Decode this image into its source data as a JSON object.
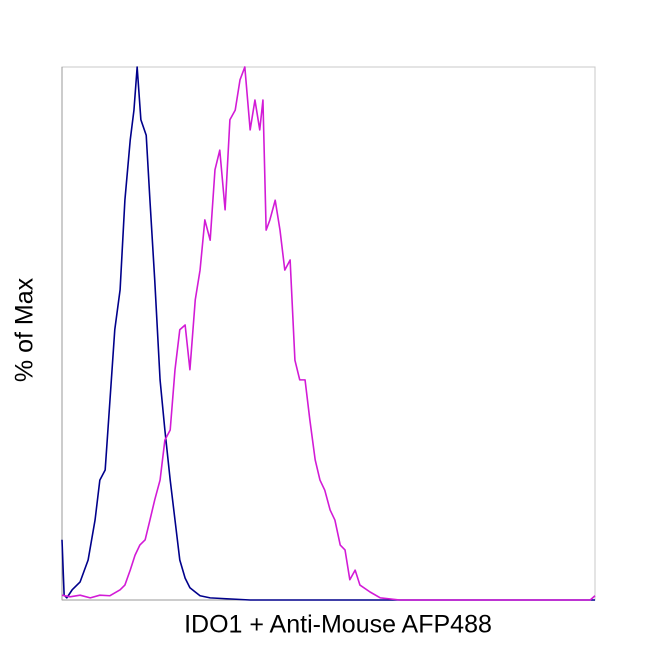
{
  "chart_data": {
    "type": "line",
    "x_label": "IDO1 + Anti-Mouse AFP488",
    "y_label": "% of Max",
    "xlim": [
      0,
      100
    ],
    "ylim": [
      0,
      100
    ],
    "series": [
      {
        "color": "#00008b",
        "x": [
          0,
          0.4,
          0.9,
          1.9,
          3.4,
          4.9,
          6.2,
          7.1,
          8.1,
          9.0,
          9.9,
          10.9,
          11.8,
          12.8,
          13.5,
          14.1,
          14.8,
          15.8,
          16.5,
          17.4,
          18.4,
          19.3,
          20.3,
          21.2,
          22.1,
          23.1,
          24.0,
          25.0,
          25.9,
          27.8,
          35.3,
          63.4,
          100
        ],
        "values": [
          11.3,
          0.9,
          0.4,
          1.9,
          3.4,
          7.5,
          15.0,
          22.5,
          24.4,
          37.5,
          50.7,
          58.2,
          75.0,
          86.3,
          91.9,
          100,
          90.1,
          87.2,
          75.0,
          60.0,
          41.3,
          31.9,
          22.5,
          15.0,
          7.5,
          4.1,
          2.3,
          1.5,
          0.8,
          0.4,
          0,
          0,
          0
        ]
      },
      {
        "color": "#d21bd6",
        "x": [
          0,
          1.5,
          3.4,
          5.3,
          7.1,
          9.0,
          10.9,
          11.8,
          12.8,
          13.7,
          14.6,
          15.6,
          16.5,
          17.4,
          18.4,
          19.3,
          20.3,
          21.2,
          22.1,
          23.1,
          24.0,
          25.0,
          25.9,
          26.8,
          27.8,
          28.7,
          29.6,
          30.6,
          31.5,
          32.5,
          33.4,
          34.3,
          35.3,
          36.2,
          37.1,
          37.7,
          38.3,
          39.0,
          40.0,
          40.9,
          41.8,
          42.8,
          43.7,
          44.6,
          45.6,
          46.5,
          47.5,
          48.4,
          49.3,
          50.3,
          51.2,
          52.2,
          53.1,
          54.0,
          55.0,
          55.9,
          57.8,
          59.7,
          63.4,
          82.2,
          99.1,
          100
        ],
        "values": [
          0.9,
          0.6,
          0.9,
          0.4,
          0.9,
          0.8,
          1.9,
          2.8,
          5.6,
          8.4,
          10.3,
          11.3,
          15.0,
          18.8,
          22.5,
          30.0,
          31.9,
          43.2,
          50.7,
          51.6,
          43.2,
          56.3,
          61.9,
          71.3,
          67.5,
          80.7,
          84.4,
          73.2,
          90.1,
          91.9,
          97.6,
          100,
          88.2,
          93.8,
          88.2,
          93.8,
          69.4,
          71.3,
          75.0,
          69.4,
          61.9,
          63.8,
          45.0,
          41.3,
          41.3,
          33.8,
          26.3,
          22.5,
          20.6,
          16.9,
          15.0,
          10.3,
          9.4,
          3.8,
          5.6,
          2.8,
          1.5,
          0.4,
          0,
          0,
          0,
          0.8
        ]
      }
    ]
  }
}
